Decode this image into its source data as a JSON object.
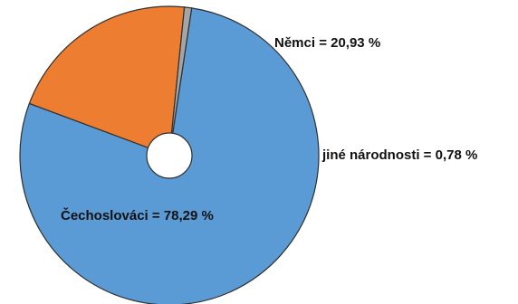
{
  "chart_data": {
    "type": "pie",
    "title": "",
    "slices": [
      {
        "label": "Čechoslováci = 78,29 %",
        "name": "Čechoslováci",
        "value": 78.29,
        "color": "#5b9bd5"
      },
      {
        "label": "Němci = 20,93 %",
        "name": "Němci",
        "value": 20.93,
        "color": "#ed7d31"
      },
      {
        "label": "jiné národnosti = 0,78 %",
        "name": "jiné národnosti",
        "value": 0.78,
        "color": "#a5a5a5"
      }
    ],
    "donut_hole": true,
    "legend": "none"
  }
}
